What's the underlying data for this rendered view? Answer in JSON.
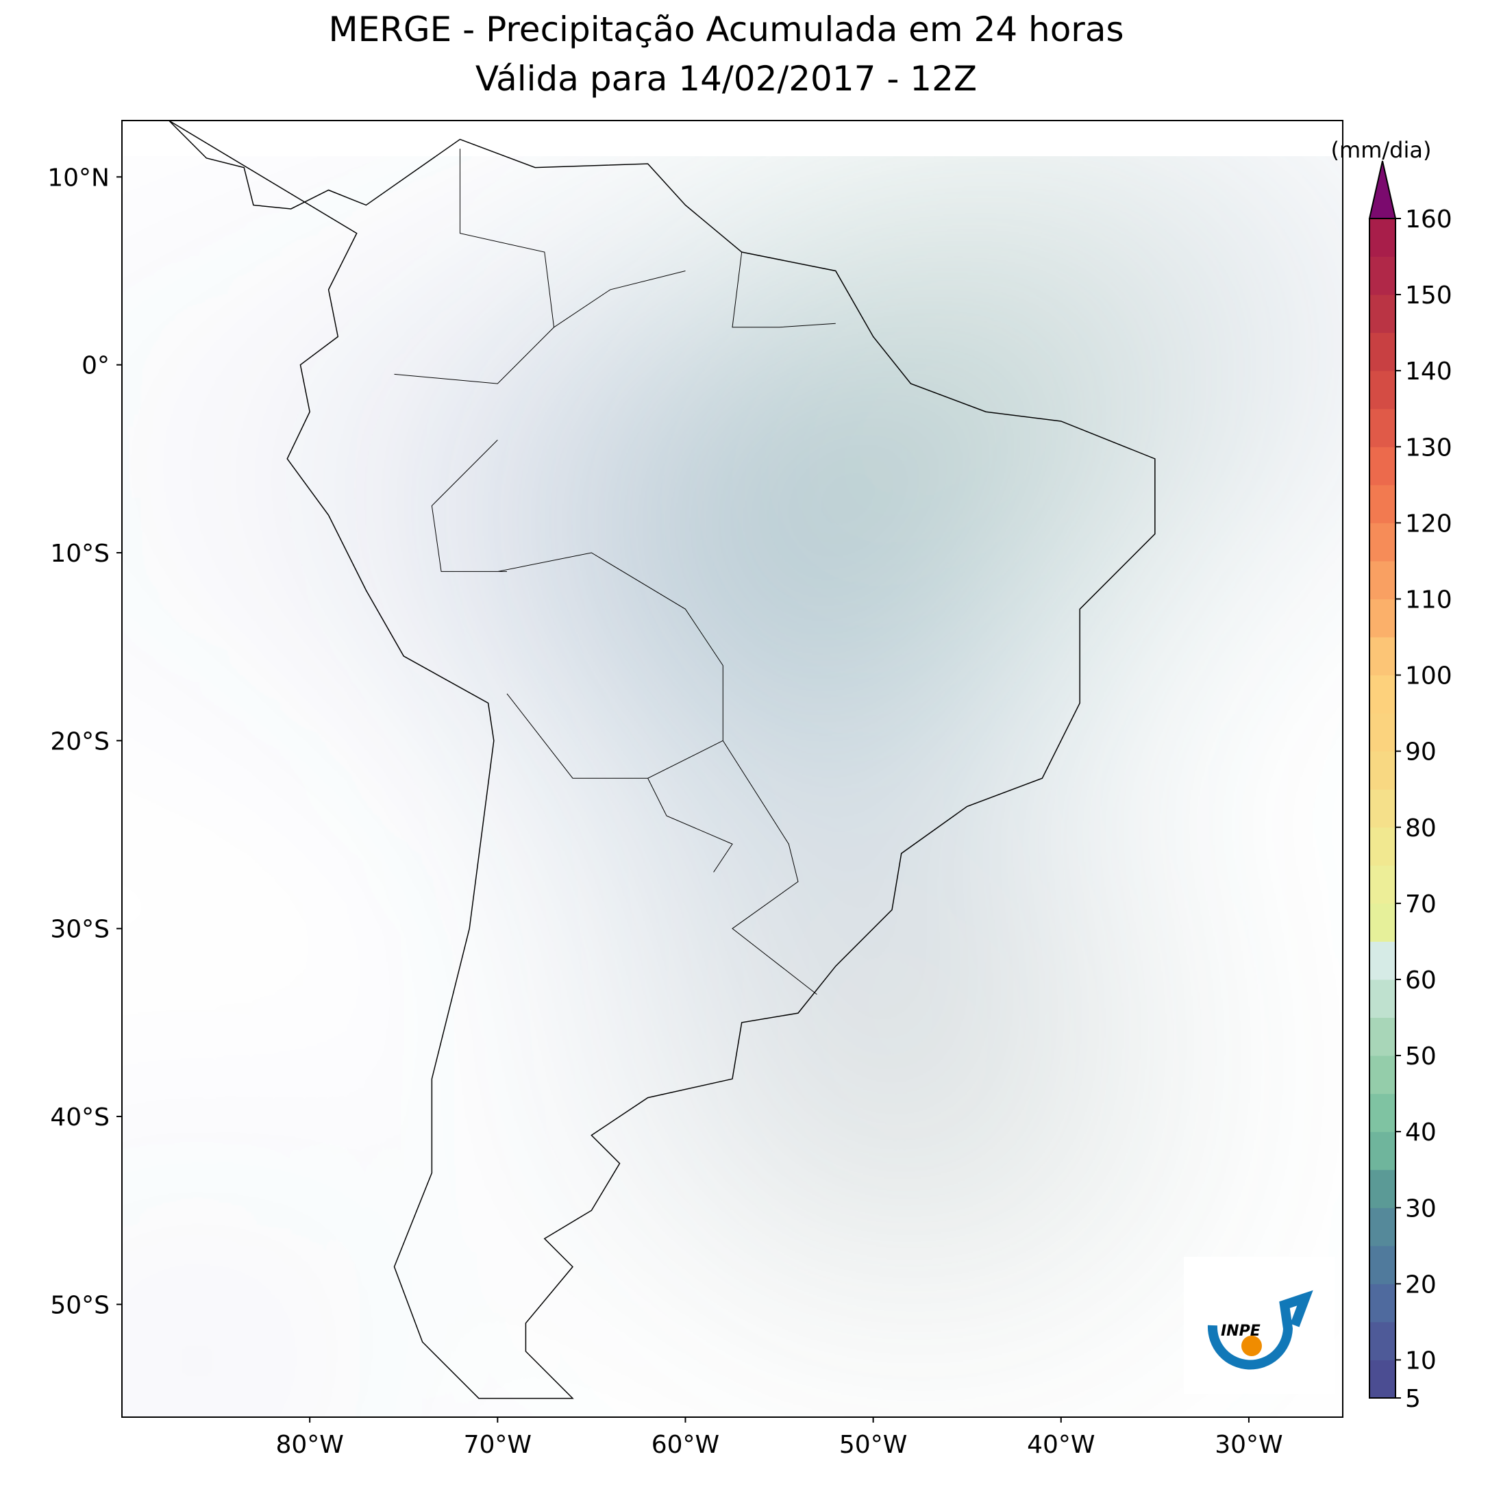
{
  "chart_data": {
    "type": "map",
    "title": "MERGE - Precipitação Acumulada em 24 horas",
    "subtitle": "Válida para 14/02/2017 - 12Z",
    "xlim": [
      -90,
      -25
    ],
    "ylim": [
      -56,
      13
    ],
    "xticks": [
      {
        "value": -80,
        "label": "80°W"
      },
      {
        "value": -70,
        "label": "70°W"
      },
      {
        "value": -60,
        "label": "60°W"
      },
      {
        "value": -50,
        "label": "50°W"
      },
      {
        "value": -40,
        "label": "40°W"
      },
      {
        "value": -30,
        "label": "30°W"
      }
    ],
    "yticks": [
      {
        "value": 10,
        "label": "10°N"
      },
      {
        "value": 0,
        "label": "0°"
      },
      {
        "value": -10,
        "label": "10°S"
      },
      {
        "value": -20,
        "label": "20°S"
      },
      {
        "value": -30,
        "label": "30°S"
      },
      {
        "value": -40,
        "label": "40°S"
      },
      {
        "value": -50,
        "label": "50°S"
      }
    ],
    "colorbar": {
      "label": "(mm/dia)",
      "lim": [
        5,
        160
      ],
      "ticks": [
        5,
        10,
        20,
        30,
        40,
        50,
        60,
        70,
        80,
        90,
        100,
        110,
        120,
        130,
        140,
        150,
        160
      ],
      "colors": [
        "#4b4d92",
        "#4e5a98",
        "#4f6a9e",
        "#507a9c",
        "#55899a",
        "#5b9a96",
        "#6fb59c",
        "#7fc3a2",
        "#94cdaa",
        "#a8d6b8",
        "#bfe1cf",
        "#d6ebe6",
        "#e6f09a",
        "#edee98",
        "#f1e890",
        "#f5e08a",
        "#f8d882",
        "#fbd37e",
        "#fdd17c",
        "#fcc576",
        "#fbb06a",
        "#f9a062",
        "#f68c58",
        "#f27a50",
        "#ec6a4c",
        "#e05a48",
        "#d44c44",
        "#c84042",
        "#ba3444",
        "#b02848",
        "#a81e4a"
      ],
      "extend_color": "#7b0a6e"
    },
    "logo_text": "INPE"
  }
}
